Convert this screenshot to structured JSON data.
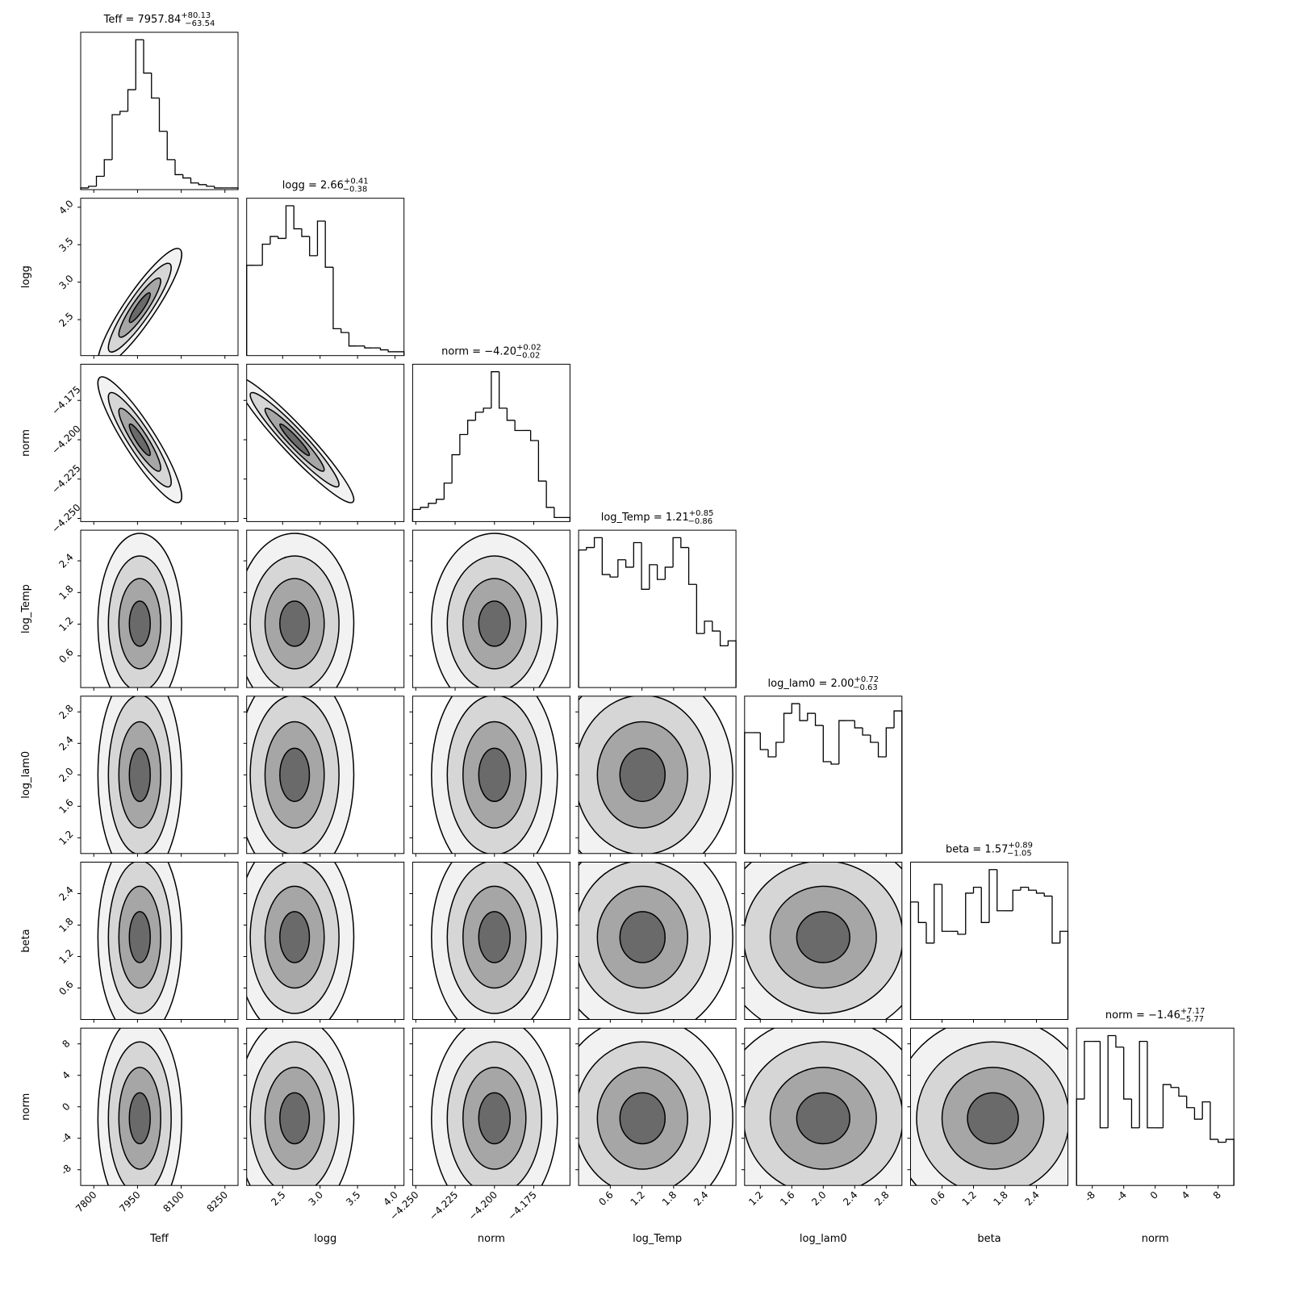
{
  "chart_data": {
    "type": "corner",
    "params": [
      {
        "label": "Teff",
        "title": "Teff = 7957.84",
        "title_sup": "+80.13",
        "title_sub": "−63.54",
        "median": 7957.84,
        "err_plus": 80.13,
        "err_minus": 63.54,
        "xlim": [
          7755,
          8295
        ],
        "xticks": [
          7800,
          7950,
          8100,
          8250
        ],
        "bins": [
          7755,
          7782,
          7809,
          7836,
          7863,
          7890,
          7917,
          7944,
          7971,
          7998,
          8025,
          8052,
          8079,
          8106,
          8133,
          8160,
          8187,
          8214,
          8241,
          8268,
          8295
        ],
        "counts": [
          1,
          2,
          8,
          18,
          45,
          47,
          60,
          90,
          70,
          55,
          35,
          18,
          9,
          7,
          4,
          3,
          2,
          1,
          1,
          1
        ]
      },
      {
        "label": "logg",
        "title": "logg = 2.66",
        "title_sup": "+0.41",
        "title_sub": "−0.38",
        "median": 2.66,
        "err_plus": 0.41,
        "err_minus": 0.38,
        "xlim": [
          2.02,
          4.12
        ],
        "xticks": [
          {
            "value": 2.5,
            "label": "2.5"
          },
          {
            "value": 3.0,
            "label": "3.0"
          },
          {
            "value": 3.5,
            "label": "3.5"
          },
          {
            "value": 4.0,
            "label": "4.0"
          }
        ],
        "bins": [
          2.02,
          2.125,
          2.23,
          2.335,
          2.44,
          2.545,
          2.65,
          2.755,
          2.86,
          2.965,
          3.07,
          3.175,
          3.28,
          3.385,
          3.49,
          3.595,
          3.7,
          3.805,
          3.91,
          4.015,
          4.12
        ],
        "counts": [
          47,
          47,
          58,
          62,
          61,
          78,
          66,
          62,
          52,
          70,
          46,
          14,
          12,
          5,
          5,
          4,
          4,
          3,
          2,
          2
        ]
      },
      {
        "label": "norm",
        "title": "norm = −4.20",
        "title_sup": "+0.02",
        "title_sub": "−0.02",
        "median": -4.2,
        "err_plus": 0.02,
        "err_minus": 0.02,
        "xlim": [
          -4.252,
          -4.152
        ],
        "xticks": [
          {
            "value": -4.25,
            "label": "−4.250"
          },
          {
            "value": -4.225,
            "label": "−4.225"
          },
          {
            "value": -4.2,
            "label": "−4.200"
          },
          {
            "value": -4.175,
            "label": "−4.175"
          }
        ],
        "bins": [
          -4.252,
          -4.247,
          -4.242,
          -4.237,
          -4.232,
          -4.227,
          -4.222,
          -4.217,
          -4.212,
          -4.207,
          -4.202,
          -4.197,
          -4.192,
          -4.187,
          -4.182,
          -4.177,
          -4.172,
          -4.167,
          -4.162,
          -4.157,
          -4.152
        ],
        "counts": [
          6,
          7,
          9,
          11,
          19,
          33,
          43,
          50,
          54,
          56,
          74,
          56,
          50,
          45,
          45,
          40,
          20,
          7,
          2,
          2
        ]
      },
      {
        "label": "log_Temp",
        "title": "log_Temp = 1.21",
        "title_sup": "+0.85",
        "title_sub": "−0.86",
        "median": 1.21,
        "err_plus": 0.85,
        "err_minus": 0.86,
        "xlim": [
          0,
          2.98
        ],
        "xticks": [
          0.6,
          1.2,
          1.8,
          2.4
        ],
        "bins": [
          0,
          0.149,
          0.298,
          0.447,
          0.596,
          0.745,
          0.894,
          1.043,
          1.192,
          1.341,
          1.49,
          1.639,
          1.788,
          1.937,
          2.086,
          2.235,
          2.384,
          2.533,
          2.682,
          2.831,
          2.98
        ],
        "counts": [
          56,
          57,
          61,
          46,
          45,
          52,
          49,
          59,
          40,
          50,
          44,
          49,
          61,
          57,
          42,
          22,
          27,
          23,
          17,
          19
        ]
      },
      {
        "label": "log_lam0",
        "title": "log_lam0 = 2.00",
        "title_sup": "+0.72",
        "title_sub": "−0.63",
        "median": 2.0,
        "err_plus": 0.72,
        "err_minus": 0.63,
        "xlim": [
          1,
          3
        ],
        "xticks": [
          1.2,
          1.6,
          {
            "value": 2.0,
            "label": "2.0"
          },
          2.4,
          2.8
        ],
        "bins": [
          1,
          1.1,
          1.2,
          1.3,
          1.4,
          1.5,
          1.6,
          1.7,
          1.8,
          1.9,
          2.0,
          2.1,
          2.2,
          2.3,
          2.4,
          2.5,
          2.6,
          2.7,
          2.8,
          2.9,
          3.0
        ],
        "counts": [
          50,
          50,
          43,
          40,
          46,
          58,
          62,
          55,
          58,
          53,
          38,
          37,
          55,
          55,
          52,
          49,
          46,
          40,
          52,
          59
        ]
      },
      {
        "label": "beta",
        "title": "beta = 1.57",
        "title_sup": "+0.89",
        "title_sub": "−1.05",
        "median": 1.57,
        "err_plus": 0.89,
        "err_minus": 1.05,
        "xlim": [
          0,
          3
        ],
        "xticks": [
          0.6,
          1.2,
          1.8,
          2.4
        ],
        "bins": [
          0,
          0.15,
          0.3,
          0.45,
          0.6,
          0.75,
          0.9,
          1.05,
          1.2,
          1.35,
          1.5,
          1.65,
          1.8,
          1.95,
          2.1,
          2.25,
          2.4,
          2.55,
          2.7,
          2.85,
          3.0
        ],
        "counts": [
          40,
          33,
          26,
          46,
          30,
          30,
          29,
          43,
          45,
          33,
          51,
          37,
          37,
          44,
          45,
          44,
          43,
          42,
          26,
          30
        ]
      },
      {
        "label": "norm",
        "title": "norm = −1.46",
        "title_sup": "+7.17",
        "title_sub": "−5.77",
        "median": -1.46,
        "err_plus": 7.17,
        "err_minus": 5.77,
        "xlim": [
          -10,
          10
        ],
        "xticks": [
          -8,
          -4,
          0,
          4,
          8
        ],
        "bins": [
          -10,
          -9,
          -8,
          -7,
          -6,
          -5,
          -4,
          -3,
          -2,
          -1,
          0,
          1,
          2,
          3,
          4,
          5,
          6,
          7,
          8,
          9,
          10
        ],
        "counts": [
          30,
          50,
          50,
          20,
          52,
          48,
          30,
          20,
          50,
          20,
          20,
          35,
          34,
          31,
          27,
          23,
          29,
          16,
          15,
          16
        ]
      }
    ],
    "correlation": [
      [],
      [
        0.9
      ],
      [
        -0.9,
        -0.95
      ],
      [
        0,
        0,
        0
      ],
      [
        0,
        0,
        0,
        0
      ],
      [
        0,
        0,
        0,
        0,
        0
      ],
      [
        0,
        0,
        0,
        0,
        0,
        0
      ]
    ]
  }
}
